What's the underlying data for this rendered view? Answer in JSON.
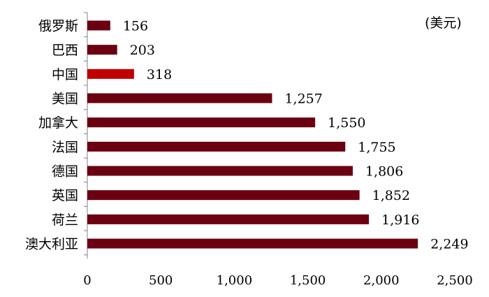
{
  "chart_data": {
    "type": "bar",
    "orientation": "horizontal",
    "unit": "(美元)",
    "categories": [
      "俄罗斯",
      "巴西",
      "中国",
      "美国",
      "加拿大",
      "法国",
      "德国",
      "英国",
      "荷兰",
      "澳大利亚"
    ],
    "values": [
      156,
      203,
      318,
      1257,
      1550,
      1755,
      1806,
      1852,
      1916,
      2249
    ],
    "value_labels": [
      "156",
      "203",
      "318",
      "1,257",
      "1,550",
      "1,755",
      "1,806",
      "1,852",
      "1,916",
      "2,249"
    ],
    "xlim": [
      0,
      2500
    ],
    "xticks": [
      0,
      500,
      1000,
      1500,
      2000,
      2500
    ],
    "xtick_labels": [
      "0",
      "500",
      "1,000",
      "1,500",
      "2,000",
      "2,500"
    ],
    "grid": false,
    "legend": "none",
    "colors": {
      "bar": "#6b0010",
      "highlight": "#c00000",
      "highlight_category": "中国",
      "axis": "#808080"
    }
  }
}
